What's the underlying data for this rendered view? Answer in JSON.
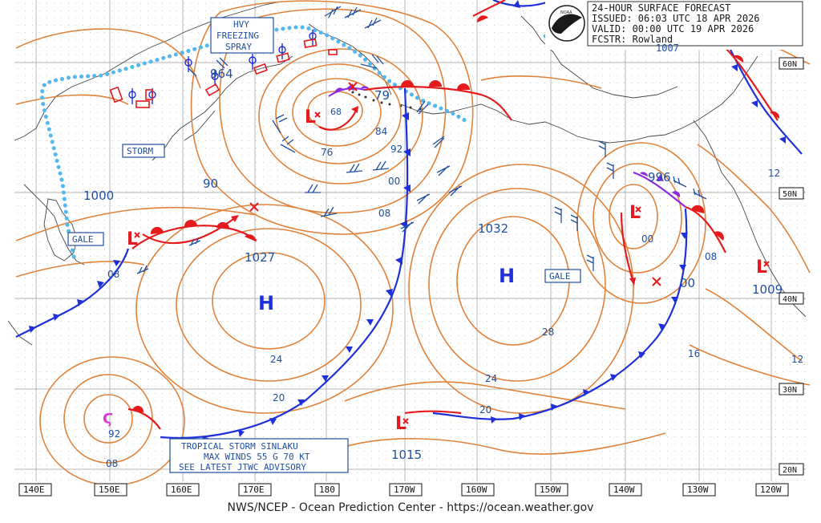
{
  "header": {
    "title": "24-HOUR SURFACE FORECAST",
    "issued": "ISSUED: 06:03 UTC 18 APR 2026",
    "valid": "VALID:  00:00 UTC 19 APR 2026",
    "forecaster": "FCSTR:  Rowland"
  },
  "logo_text": "NOAA",
  "longitudes": [
    "140E",
    "150E",
    "160E",
    "170E",
    "180",
    "170W",
    "160W",
    "150W",
    "140W",
    "130W",
    "120W"
  ],
  "latitudes": [
    "60N",
    "50N",
    "40N",
    "30N",
    "20N"
  ],
  "lows": [
    {
      "id": "low-nw-pacific",
      "pressure": "964"
    },
    {
      "id": "low-bering",
      "pressure": "68"
    },
    {
      "id": "low-gulf-alaska",
      "pressure": "996"
    },
    {
      "id": "low-west",
      "pressure": "1027"
    },
    {
      "id": "low-central",
      "pressure": "1015"
    },
    {
      "id": "low-coast",
      "pressure": "1009"
    }
  ],
  "highs": [
    {
      "id": "high-west",
      "symbol": "H"
    },
    {
      "id": "high-east",
      "symbol": "H",
      "pressure": "1032"
    }
  ],
  "warnings": {
    "storm": "STORM",
    "gale_west": "GALE",
    "gale_east": "GALE",
    "freezing_spray": [
      "HVY",
      "FREEZING",
      "SPRAY"
    ]
  },
  "tropical": {
    "symbol": "Ϛ",
    "pressure": "92",
    "lines": [
      "TROPICAL STORM SINLAKU",
      "MAX WINDS 55 G 70 KT",
      "SEE LATEST JTWC ADVISORY"
    ]
  },
  "isobar_labels": [
    "1000",
    "90",
    "79",
    "84",
    "92",
    "76",
    "00",
    "08",
    "08",
    "00",
    "08",
    "00",
    "24",
    "20",
    "28",
    "24",
    "16",
    "12",
    "12",
    "20",
    "08",
    "1032",
    "00",
    "08",
    "1007"
  ],
  "credit": "NWS/NCEP - Ocean Prediction Center - https://ocean.weather.gov",
  "colors": {
    "isobar": "#e0823a",
    "warm_front": "#e41a1c",
    "cold_front": "#1f2fd9",
    "occluded": "#8a2be2",
    "ice_edge": "#52b8f0",
    "box": "#1f4fa0",
    "coast": "#444444"
  }
}
